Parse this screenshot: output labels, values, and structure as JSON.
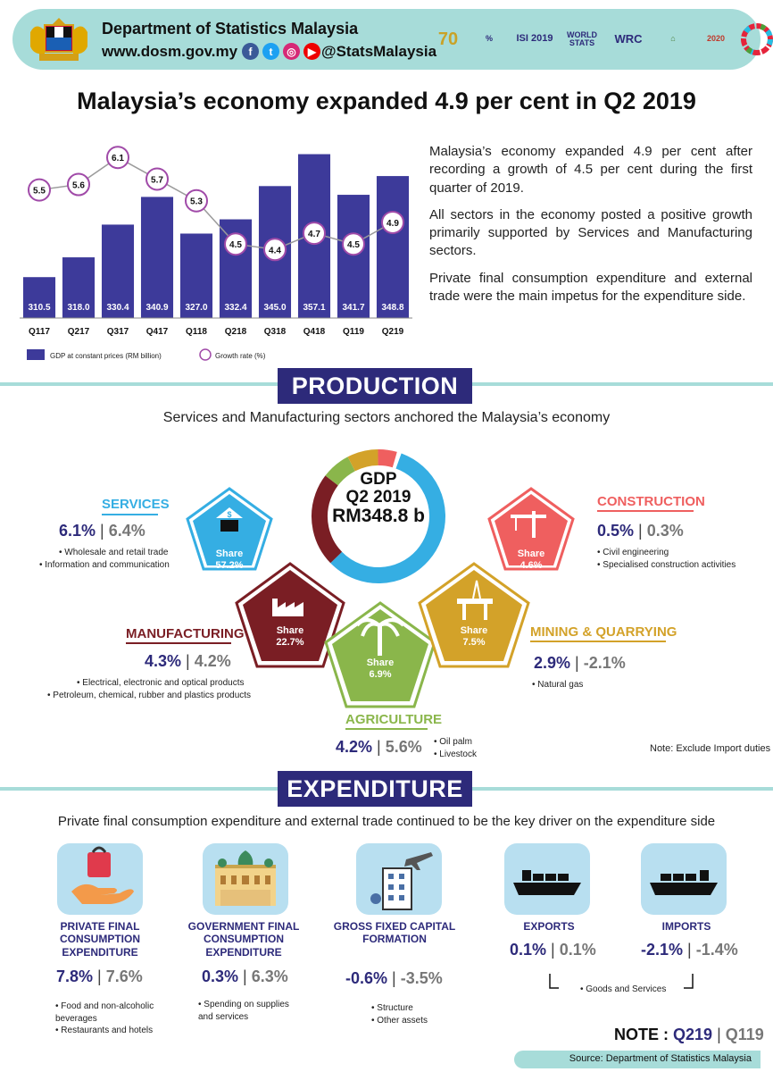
{
  "header": {
    "department": "Department of Statistics Malaysia",
    "url": "www.dosm.gov.my",
    "handle": "@StatsMalaysia",
    "logos": [
      "70 Tahun",
      "Hari Statistik Negara",
      "ISI 2019",
      "World Stats Jun 2019",
      "WRC 2019",
      "Smart City",
      "Census 2020",
      "SDG"
    ]
  },
  "title": "Malaysia’s economy expanded 4.9 per cent in Q2 2019",
  "chart_data": {
    "type": "bar",
    "categories": [
      "Q117",
      "Q217",
      "Q317",
      "Q417",
      "Q118",
      "Q218",
      "Q318",
      "Q418",
      "Q119",
      "Q219"
    ],
    "series": [
      {
        "name": "GDP at constant prices (RM billion)",
        "values": [
          310.5,
          318.0,
          330.4,
          340.9,
          327.0,
          332.4,
          345.0,
          357.1,
          341.7,
          348.8
        ],
        "labels": [
          "310.5",
          "318.0",
          "330.4",
          "340.9",
          "327.0",
          "332.4",
          "345.0",
          "357.1",
          "341.7",
          "348.8"
        ]
      },
      {
        "name": "Growth rate (%)",
        "values": [
          5.5,
          5.6,
          6.1,
          5.7,
          5.3,
          4.5,
          4.4,
          4.7,
          4.5,
          4.9
        ],
        "labels": [
          "5.5",
          "5.6",
          "6.1",
          "5.7",
          "5.3",
          "4.5",
          "4.4",
          "4.7",
          "4.5",
          "4.9"
        ]
      }
    ],
    "title": "",
    "xlabel": "",
    "ylabel": "",
    "ylim": [
      295,
      360
    ],
    "growth_ylim": [
      3.2,
      6.4
    ],
    "colors": {
      "bar": "#3d3a9a",
      "line": "#9b9b9b",
      "marker": "#a04aa8"
    },
    "legend_placement": "bottom-left"
  },
  "intro": [
    "Malaysia’s economy expanded 4.9 per cent after recording a growth of 4.5 per cent during the first quarter of 2019.",
    "All sectors in the economy posted a positive growth primarily supported by Services and Manufacturing sectors.",
    "Private final consumption expenditure and external trade were the main impetus for the expenditure side."
  ],
  "production": {
    "banner": "PRODUCTION",
    "subtitle": "Services and Manufacturing sectors anchored the Malaysia’s economy",
    "gdp": {
      "line1": "GDP",
      "line2": "Q2 2019",
      "line3": "RM348.8 b"
    },
    "share_label": "Share",
    "sectors": {
      "services": {
        "name": "SERVICES",
        "rate": "6.1%",
        "prev": "6.4%",
        "share": "57.2%",
        "color": "#35aee3",
        "items": [
          "Wholesale and retail trade",
          "Information and communication"
        ]
      },
      "manufacturing": {
        "name": "MANUFACTURING",
        "rate": "4.3%",
        "prev": "4.2%",
        "share": "22.7%",
        "color": "#7a1e24",
        "items": [
          "Electrical, electronic and optical products",
          "Petroleum, chemical, rubber and plastics products"
        ]
      },
      "agriculture": {
        "name": "AGRICULTURE",
        "rate": "4.2%",
        "prev": "5.6%",
        "share": "6.9%",
        "color": "#8ab64b",
        "items": [
          "Oil palm",
          "Livestock"
        ]
      },
      "mining": {
        "name": "MINING & QUARRYING",
        "rate": "2.9%",
        "prev": "-2.1%",
        "share": "7.5%",
        "color": "#d3a229",
        "items": [
          "Natural gas"
        ]
      },
      "construction": {
        "name": "CONSTRUCTION",
        "rate": "0.5%",
        "prev": "0.3%",
        "share": "4.6%",
        "color": "#ef5f5f",
        "items": [
          "Civil engineering",
          "Specialised construction activities"
        ]
      }
    },
    "note": "Note: Exclude Import duties"
  },
  "expenditure": {
    "banner": "EXPENDITURE",
    "subtitle": "Private final consumption expenditure and external trade continued to be the key driver on the expenditure side",
    "items": [
      {
        "name": "PRIVATE FINAL CONSUMPTION EXPENDITURE",
        "rate": "7.8%",
        "prev": "7.6%",
        "details": [
          "Food and non-alcoholic beverages",
          "Restaurants and hotels"
        ]
      },
      {
        "name": "GOVERNMENT FINAL CONSUMPTION EXPENDITURE",
        "rate": "0.3%",
        "prev": "6.3%",
        "details": [
          "Spending on supplies and services"
        ]
      },
      {
        "name": "GROSS FIXED CAPITAL FORMATION",
        "rate": "-0.6%",
        "prev": "-3.5%",
        "details": [
          "Structure",
          "Other assets"
        ]
      },
      {
        "name": "EXPORTS",
        "rate": "0.1%",
        "prev": "0.1%",
        "details": []
      },
      {
        "name": "IMPORTS",
        "rate": "-2.1%",
        "prev": "-1.4%",
        "details": []
      }
    ],
    "trade_note": "Goods and Services"
  },
  "footer": {
    "note_label": "NOTE :",
    "current": "Q219",
    "previous": "Q119",
    "source": "Source: Department of Statistics Malaysia"
  }
}
